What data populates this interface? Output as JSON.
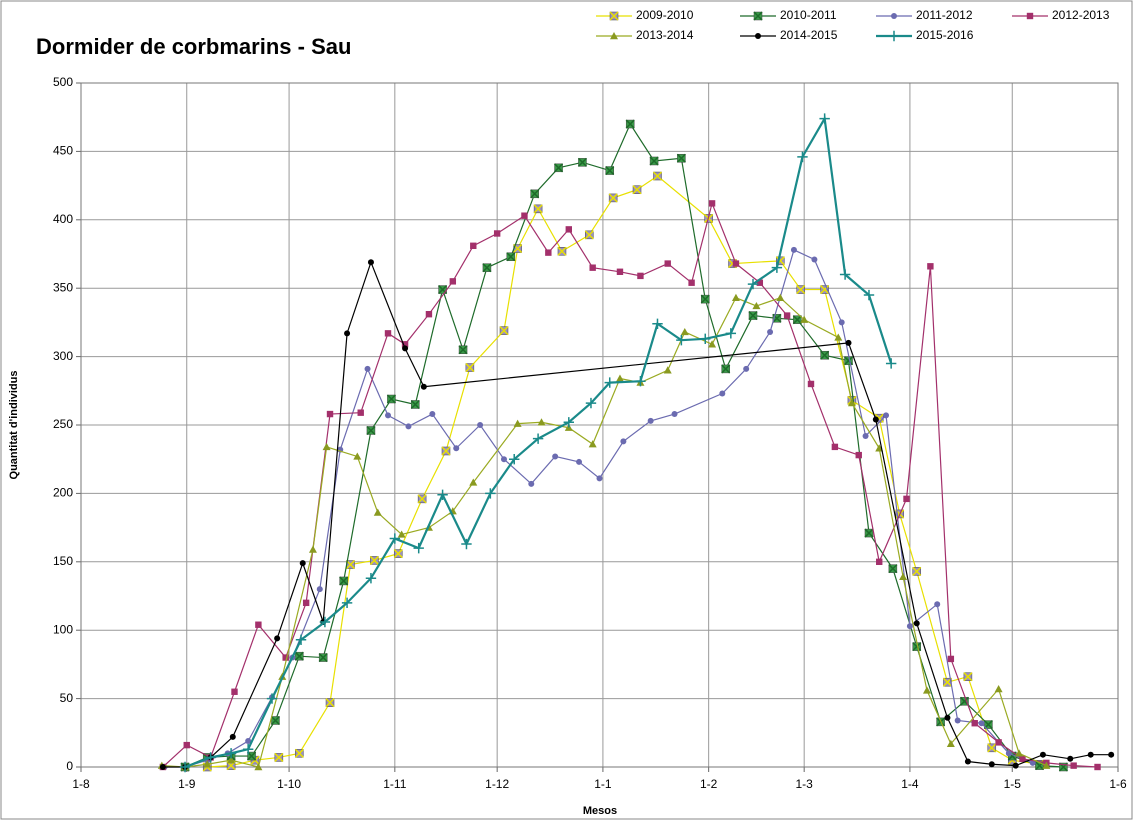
{
  "chart_data": {
    "type": "line",
    "title": "Dormider de corbmarins - Sau",
    "xlabel": "Mesos",
    "ylabel": "Quantitat d'individus",
    "xlim": [
      0,
      304
    ],
    "xticks": [
      {
        "value": 0,
        "label": "1-8"
      },
      {
        "value": 31,
        "label": "1-9"
      },
      {
        "value": 61,
        "label": "1-10"
      },
      {
        "value": 92,
        "label": "1-11"
      },
      {
        "value": 122,
        "label": "1-12"
      },
      {
        "value": 153,
        "label": "1-1"
      },
      {
        "value": 184,
        "label": "1-2"
      },
      {
        "value": 212,
        "label": "1-3"
      },
      {
        "value": 243,
        "label": "1-4"
      },
      {
        "value": 273,
        "label": "1-5"
      },
      {
        "value": 304,
        "label": "1-6"
      }
    ],
    "ylim": [
      0,
      500
    ],
    "yticks": [
      0,
      50,
      100,
      150,
      200,
      250,
      300,
      350,
      400,
      450,
      500
    ],
    "grid": true,
    "legend": "top-right",
    "series": [
      {
        "name": "2009-2010",
        "color": "#e8e000",
        "marker_color": "#9a8fc0",
        "marker": "square-x",
        "x": [
          37,
          44,
          51,
          58,
          64,
          73,
          79,
          86,
          93,
          100,
          107,
          114,
          124,
          128,
          134,
          141,
          149,
          156,
          163,
          169,
          184,
          191,
          205,
          211,
          218,
          226,
          234,
          240,
          245,
          254,
          260,
          267,
          273,
          281
        ],
        "values": [
          0,
          1,
          5,
          7,
          10,
          47,
          148,
          151,
          156,
          196,
          231,
          292,
          319,
          379,
          408,
          377,
          389,
          416,
          422,
          432,
          401,
          368,
          370,
          349,
          349,
          268,
          255,
          185,
          143,
          62,
          66,
          14,
          5,
          2
        ]
      },
      {
        "name": "2010-2011",
        "color": "#1e6b2a",
        "marker_color": "#3a9a48",
        "marker": "square-x",
        "x": [
          30.5,
          37,
          44,
          50,
          57,
          64,
          71,
          77,
          85,
          91,
          98,
          106,
          112,
          119,
          126,
          133,
          140,
          147,
          155,
          161,
          168,
          176,
          183,
          189,
          197,
          204,
          210,
          218,
          225,
          231,
          238,
          245,
          252,
          259,
          266,
          273,
          281,
          288
        ],
        "values": [
          0,
          7,
          8,
          8,
          34,
          81,
          80,
          136,
          246,
          269,
          265,
          349,
          305,
          365,
          373,
          419,
          438,
          442,
          436,
          470,
          443,
          445,
          342,
          291,
          330,
          328,
          327,
          301,
          297,
          171,
          145,
          88,
          33,
          48,
          31,
          8,
          1,
          0
        ]
      },
      {
        "name": "2011-2012",
        "color": "#6b6bb0",
        "marker_color": "#6b6bb0",
        "marker": "circle",
        "x": [
          24.5,
          30.5,
          37,
          43,
          49,
          56,
          62,
          70,
          76,
          84,
          90,
          96,
          103,
          110,
          117,
          124,
          132,
          139,
          146,
          152,
          159,
          167,
          174,
          188,
          195,
          202,
          209,
          215,
          223,
          230,
          236,
          243,
          251,
          257,
          264,
          272,
          279
        ],
        "values": [
          0,
          0,
          5,
          10,
          19,
          51,
          80,
          130,
          232,
          291,
          257,
          249,
          258,
          233,
          250,
          225,
          207,
          227,
          223,
          211,
          238,
          253,
          258,
          273,
          291,
          318,
          378,
          371,
          325,
          242,
          257,
          103,
          119,
          34,
          32,
          10,
          3
        ]
      },
      {
        "name": "2012-2013",
        "color": "#a3306b",
        "marker_color": "#a3306b",
        "marker": "square",
        "x": [
          24,
          31,
          38,
          45,
          52,
          60,
          66,
          73,
          82,
          90,
          95,
          102,
          109,
          115,
          122,
          130,
          137,
          143,
          150,
          158,
          164,
          172,
          179,
          185,
          192,
          199,
          207,
          214,
          221,
          228,
          234,
          242,
          249,
          255,
          262,
          269,
          276,
          283,
          291,
          298
        ],
        "values": [
          0,
          16,
          7,
          55,
          104,
          80,
          120,
          258,
          259,
          317,
          309,
          331,
          355,
          381,
          390,
          403,
          376,
          393,
          365,
          362,
          359,
          368,
          354,
          412,
          368,
          354,
          330,
          280,
          234,
          228,
          150,
          196,
          366,
          79,
          32,
          18,
          6,
          3,
          1,
          0
        ]
      },
      {
        "name": "2013-2014",
        "color": "#9aaa22",
        "marker_color": "#8a9a20",
        "marker": "triangle",
        "x": [
          23.7,
          30.5,
          37,
          44,
          52,
          59,
          68,
          72,
          81,
          87,
          94,
          102,
          109,
          115,
          128,
          135,
          143,
          150,
          158,
          164,
          172,
          177,
          185,
          192,
          198,
          205,
          212,
          222,
          226,
          234,
          241,
          248,
          255,
          269,
          275,
          283
        ],
        "values": [
          1,
          0,
          2,
          5,
          0,
          66,
          159,
          234,
          227,
          186,
          170,
          175,
          187,
          208,
          251,
          252,
          248,
          236,
          284,
          281,
          290,
          318,
          309,
          343,
          337,
          343,
          327,
          314,
          266,
          233,
          139,
          56,
          17,
          57,
          10,
          1
        ]
      },
      {
        "name": "2014-2015",
        "color": "#000000",
        "marker_color": "#000000",
        "marker": "circle",
        "x": [
          24,
          30.5,
          38,
          44.5,
          57.5,
          65,
          71,
          78,
          85,
          95,
          100.5,
          225,
          233,
          245,
          254,
          260,
          267,
          274,
          282,
          290,
          296,
          302
        ],
        "values": [
          0,
          0,
          7,
          22,
          94,
          149,
          106,
          317,
          369,
          306,
          278,
          310,
          254,
          105,
          36,
          4,
          2,
          1,
          9,
          6,
          9,
          9
        ]
      },
      {
        "name": "2015-2016",
        "color": "#1a8a8a",
        "marker_color": "#1a8a8a",
        "marker": "plus",
        "x": [
          30.5,
          38,
          44,
          49,
          56,
          64.5,
          71.5,
          78,
          85,
          92,
          99,
          106,
          113,
          120,
          127,
          134,
          143,
          149.5,
          155,
          164,
          169,
          176,
          183,
          190.5,
          197,
          204,
          211.5,
          218,
          224,
          231,
          237.5
        ],
        "values": [
          0,
          7,
          10,
          13,
          50,
          93,
          106,
          120,
          138,
          167,
          160,
          199,
          163,
          200,
          225,
          240,
          252,
          266,
          281,
          282,
          324,
          312,
          313,
          317,
          353,
          365,
          446,
          474,
          360,
          345,
          295
        ]
      }
    ]
  }
}
